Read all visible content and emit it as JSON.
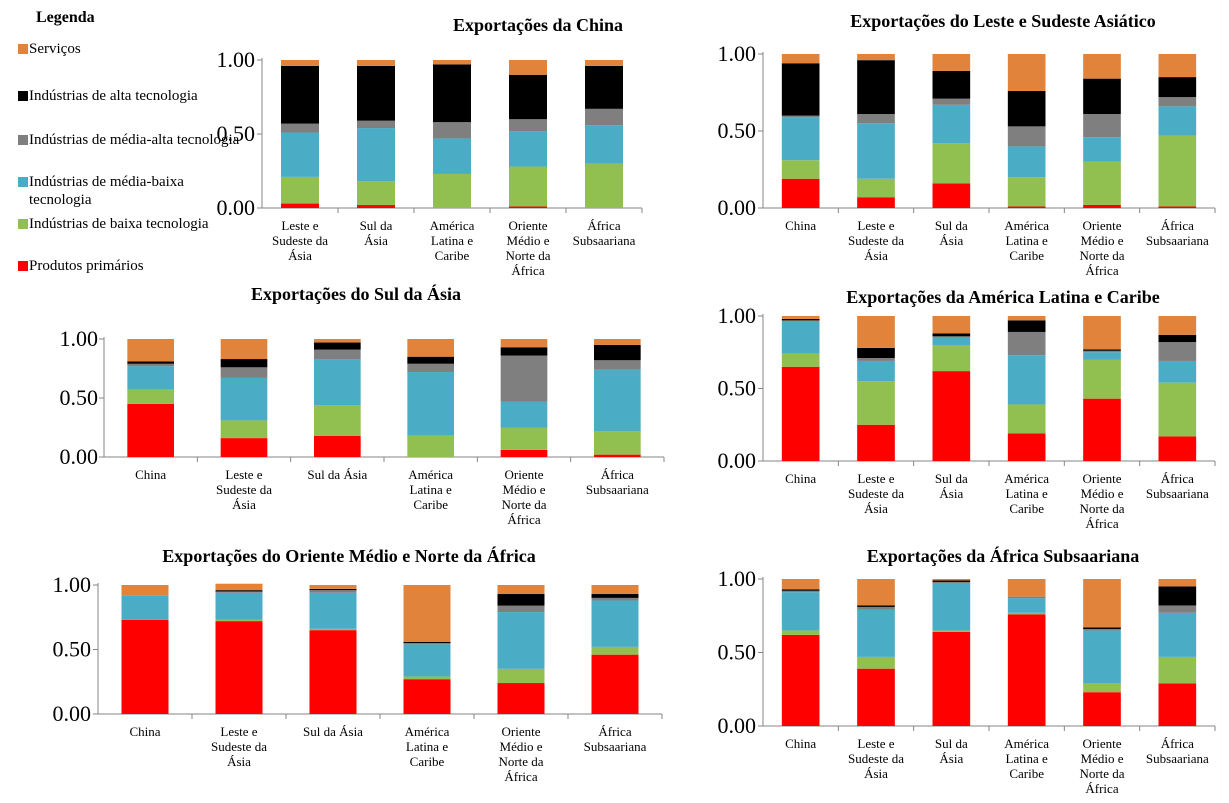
{
  "legend": {
    "title": "Legenda",
    "items": [
      {
        "label": "Serviços",
        "color": "#E2833C"
      },
      {
        "label": "Indústrias de alta tecnologia",
        "color": "#000000"
      },
      {
        "label": "Indústrias de média-alta tecnologia",
        "color": "#7F7F7F"
      },
      {
        "label": "Indústrias de média-baixa tecnologia",
        "color": "#4BACC6"
      },
      {
        "label": "Indústrias de baixa tecnologia",
        "color": "#92C050"
      },
      {
        "label": "Produtos primários",
        "color": "#FF0000"
      }
    ]
  },
  "chart_data": [
    {
      "type": "bar",
      "stacked": true,
      "title": "Exportações da China",
      "categories": [
        "Leste e Sudeste da Ásia",
        "Sul da Ásia",
        "América Latina e Caribe",
        "Oriente Médio e Norte da África",
        "África Subsaariana"
      ],
      "ylim": [
        0,
        1
      ],
      "yticks": [
        "0.00",
        "0.50",
        "1.00"
      ],
      "grid": false,
      "series": [
        {
          "name": "Produtos primários",
          "values": [
            0.03,
            0.02,
            0.0,
            0.01,
            0.0
          ]
        },
        {
          "name": "Indústrias de baixa tecnologia",
          "values": [
            0.18,
            0.16,
            0.23,
            0.27,
            0.3
          ]
        },
        {
          "name": "Indústrias de média-baixa tecnologia",
          "values": [
            0.3,
            0.36,
            0.24,
            0.24,
            0.26
          ]
        },
        {
          "name": "Indústrias de média-alta tecnologia",
          "values": [
            0.06,
            0.05,
            0.11,
            0.08,
            0.11
          ]
        },
        {
          "name": "Indústrias de alta tecnologia",
          "values": [
            0.39,
            0.37,
            0.39,
            0.3,
            0.29
          ]
        },
        {
          "name": "Serviços",
          "values": [
            0.04,
            0.04,
            0.03,
            0.1,
            0.04
          ]
        }
      ]
    },
    {
      "type": "bar",
      "stacked": true,
      "title": "Exportações do Leste e Sudeste Asiático",
      "categories": [
        "China",
        "Leste e Sudeste da Ásia",
        "Sul da Ásia",
        "América Latina e Caribe",
        "Oriente Médio e Norte da África",
        "África Subsaariana"
      ],
      "ylim": [
        0,
        1
      ],
      "yticks": [
        "0.00",
        "0.50",
        "1.00"
      ],
      "grid": false,
      "series": [
        {
          "name": "Produtos primários",
          "values": [
            0.19,
            0.07,
            0.16,
            0.01,
            0.02,
            0.01
          ]
        },
        {
          "name": "Indústrias de baixa tecnologia",
          "values": [
            0.12,
            0.12,
            0.26,
            0.19,
            0.28,
            0.46
          ]
        },
        {
          "name": "Indústrias de média-baixa tecnologia",
          "values": [
            0.28,
            0.36,
            0.25,
            0.2,
            0.16,
            0.19
          ]
        },
        {
          "name": "Indústrias de média-alta tecnologia",
          "values": [
            0.01,
            0.06,
            0.04,
            0.13,
            0.15,
            0.06
          ]
        },
        {
          "name": "Indústrias de alta tecnologia",
          "values": [
            0.34,
            0.35,
            0.18,
            0.23,
            0.23,
            0.13
          ]
        },
        {
          "name": "Serviços",
          "values": [
            0.06,
            0.04,
            0.11,
            0.24,
            0.16,
            0.15
          ]
        }
      ]
    },
    {
      "type": "bar",
      "stacked": true,
      "title": "Exportações do Sul da Ásia",
      "categories": [
        "China",
        "Leste e Sudeste da Ásia",
        "Sul da Ásia",
        "América Latina e Caribe",
        "Oriente Médio e Norte da África",
        "África Subsaariana"
      ],
      "ylim": [
        0,
        1
      ],
      "yticks": [
        "0.00",
        "0.50",
        "1.00"
      ],
      "grid": false,
      "series": [
        {
          "name": "Produtos primários",
          "values": [
            0.45,
            0.16,
            0.18,
            0.0,
            0.06,
            0.02
          ]
        },
        {
          "name": "Indústrias de baixa tecnologia",
          "values": [
            0.12,
            0.15,
            0.26,
            0.18,
            0.19,
            0.2
          ]
        },
        {
          "name": "Indústrias de média-baixa tecnologia",
          "values": [
            0.2,
            0.36,
            0.39,
            0.54,
            0.22,
            0.52
          ]
        },
        {
          "name": "Indústrias de média-alta tecnologia",
          "values": [
            0.02,
            0.09,
            0.08,
            0.07,
            0.39,
            0.08
          ]
        },
        {
          "name": "Indústrias de alta tecnologia",
          "values": [
            0.02,
            0.07,
            0.06,
            0.06,
            0.07,
            0.13
          ]
        },
        {
          "name": "Serviços",
          "values": [
            0.19,
            0.17,
            0.03,
            0.15,
            0.07,
            0.05
          ]
        }
      ]
    },
    {
      "type": "bar",
      "stacked": true,
      "title": "Exportações da América Latina e Caribe",
      "categories": [
        "China",
        "Leste e Sudeste da Ásia",
        "Sul da Ásia",
        "América Latina e Caribe",
        "Oriente Médio e Norte da África",
        "África Subsaariana"
      ],
      "ylim": [
        0,
        1
      ],
      "yticks": [
        "0.00",
        "0.50",
        "1.00"
      ],
      "grid": false,
      "series": [
        {
          "name": "Produtos primários",
          "values": [
            0.65,
            0.25,
            0.62,
            0.19,
            0.43,
            0.17
          ]
        },
        {
          "name": "Indústrias de baixa tecnologia",
          "values": [
            0.09,
            0.3,
            0.18,
            0.2,
            0.27,
            0.37
          ]
        },
        {
          "name": "Indústrias de média-baixa tecnologia",
          "values": [
            0.22,
            0.14,
            0.05,
            0.34,
            0.05,
            0.15
          ]
        },
        {
          "name": "Indústrias de média-alta tecnologia",
          "values": [
            0.01,
            0.02,
            0.01,
            0.16,
            0.01,
            0.13
          ]
        },
        {
          "name": "Indústrias de alta tecnologia",
          "values": [
            0.01,
            0.07,
            0.02,
            0.08,
            0.01,
            0.05
          ]
        },
        {
          "name": "Serviços",
          "values": [
            0.02,
            0.22,
            0.12,
            0.03,
            0.23,
            0.13
          ]
        }
      ]
    },
    {
      "type": "bar",
      "stacked": true,
      "title": "Exportações do Oriente Médio e Norte da África",
      "categories": [
        "China",
        "Leste e Sudeste da Ásia",
        "Sul da Ásia",
        "América Latina e Caribe",
        "Oriente Médio e Norte da África",
        "África Subsaariana"
      ],
      "ylim": [
        0,
        1
      ],
      "yticks": [
        "0.00",
        "0.50",
        "1.00"
      ],
      "grid": false,
      "series": [
        {
          "name": "Produtos primários",
          "values": [
            0.73,
            0.72,
            0.65,
            0.27,
            0.24,
            0.46
          ]
        },
        {
          "name": "Indústrias de baixa tecnologia",
          "values": [
            0.0,
            0.01,
            0.01,
            0.02,
            0.11,
            0.06
          ]
        },
        {
          "name": "Indústrias de média-baixa tecnologia",
          "values": [
            0.19,
            0.21,
            0.28,
            0.25,
            0.44,
            0.36
          ]
        },
        {
          "name": "Indústrias de média-alta tecnologia",
          "values": [
            0.0,
            0.01,
            0.02,
            0.01,
            0.05,
            0.02
          ]
        },
        {
          "name": "Indústrias de alta tecnologia",
          "values": [
            0.0,
            0.01,
            0.01,
            0.01,
            0.09,
            0.03
          ]
        },
        {
          "name": "Serviços",
          "values": [
            0.08,
            0.05,
            0.03,
            0.44,
            0.07,
            0.07
          ]
        }
      ]
    },
    {
      "type": "bar",
      "stacked": true,
      "title": "Exportações da África Subsaariana",
      "categories": [
        "China",
        "Leste e Sudeste da Ásia",
        "Sul da Ásia",
        "América Latina e Caribe",
        "Oriente Médio e Norte da África",
        "África Subsaariana"
      ],
      "ylim": [
        0,
        1
      ],
      "yticks": [
        "0.00",
        "0.50",
        "1.00"
      ],
      "grid": false,
      "series": [
        {
          "name": "Produtos primários",
          "values": [
            0.62,
            0.39,
            0.64,
            0.76,
            0.23,
            0.29
          ]
        },
        {
          "name": "Indústrias de baixa tecnologia",
          "values": [
            0.03,
            0.08,
            0.01,
            0.01,
            0.06,
            0.18
          ]
        },
        {
          "name": "Indústrias de média-baixa tecnologia",
          "values": [
            0.26,
            0.32,
            0.32,
            0.1,
            0.36,
            0.3
          ]
        },
        {
          "name": "Indústrias de média-alta tecnologia",
          "values": [
            0.01,
            0.02,
            0.01,
            0.01,
            0.01,
            0.05
          ]
        },
        {
          "name": "Indústrias de alta tecnologia",
          "values": [
            0.01,
            0.01,
            0.01,
            0.0,
            0.01,
            0.13
          ]
        },
        {
          "name": "Serviços",
          "values": [
            0.07,
            0.18,
            0.01,
            0.12,
            0.33,
            0.05
          ]
        }
      ]
    }
  ]
}
